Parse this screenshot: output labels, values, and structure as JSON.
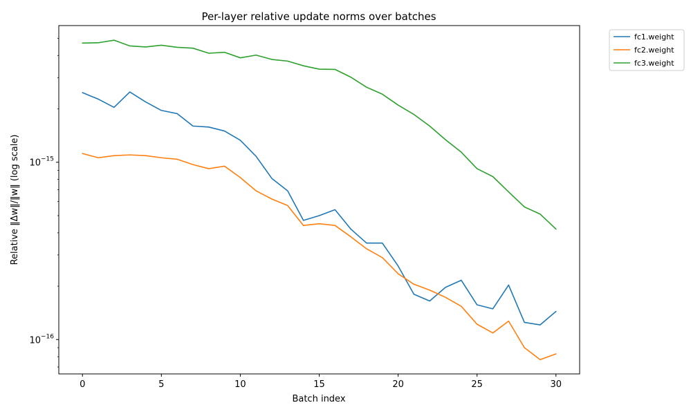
{
  "chart_data": {
    "type": "line",
    "title": "Per-layer relative update norms over batches",
    "xlabel": "Batch index",
    "ylabel": "Relative ‖Δw‖/‖w‖ (log scale)",
    "yscale": "log",
    "xlim": [
      -1.5,
      31.5
    ],
    "ylim": [
      6.4e-17,
      5.9e-15
    ],
    "x": [
      0,
      1,
      2,
      3,
      4,
      5,
      6,
      7,
      8,
      9,
      10,
      11,
      12,
      13,
      14,
      15,
      16,
      17,
      18,
      19,
      20,
      21,
      22,
      23,
      24,
      25,
      26,
      27,
      28,
      29,
      30
    ],
    "x_ticks": [
      0,
      5,
      10,
      15,
      20,
      25,
      30
    ],
    "y_ticks": [
      {
        "value": 1e-15,
        "base": "10",
        "exp": "−15"
      },
      {
        "value": 1e-16,
        "base": "10",
        "exp": "−16"
      }
    ],
    "grid": false,
    "legend_position": "upper-right-outside",
    "series": [
      {
        "name": "fc1.weight",
        "color": "#1f77b4",
        "values": [
          2.47e-15,
          2.27e-15,
          2.04e-15,
          2.49e-15,
          2.19e-15,
          1.96e-15,
          1.88e-15,
          1.6e-15,
          1.58e-15,
          1.5e-15,
          1.33e-15,
          1.08e-15,
          8.1e-16,
          6.9e-16,
          4.7e-16,
          5e-16,
          5.4e-16,
          4.2e-16,
          3.5e-16,
          3.5e-16,
          2.6e-16,
          1.8e-16,
          1.65e-16,
          1.97e-16,
          2.16e-16,
          1.57e-16,
          1.49e-16,
          2.03e-16,
          1.25e-16,
          1.21e-16,
          1.44e-16
        ]
      },
      {
        "name": "fc2.weight",
        "color": "#ff7f0e",
        "values": [
          1.12e-15,
          1.06e-15,
          1.09e-15,
          1.1e-15,
          1.09e-15,
          1.06e-15,
          1.04e-15,
          9.7e-16,
          9.2e-16,
          9.5e-16,
          8.2e-16,
          6.9e-16,
          6.2e-16,
          5.7e-16,
          4.4e-16,
          4.5e-16,
          4.4e-16,
          3.8e-16,
          3.25e-16,
          2.9e-16,
          2.35e-16,
          2.05e-16,
          1.9e-16,
          1.73e-16,
          1.54e-16,
          1.22e-16,
          1.09e-16,
          1.27e-16,
          9e-17,
          7.7e-17,
          8.3e-17
        ]
      },
      {
        "name": "fc3.weight",
        "color": "#2ca02c",
        "values": [
          4.7e-15,
          4.72e-15,
          4.88e-15,
          4.53e-15,
          4.47e-15,
          4.57e-15,
          4.45e-15,
          4.4e-15,
          4.12e-15,
          4.17e-15,
          3.88e-15,
          4.02e-15,
          3.8e-15,
          3.72e-15,
          3.5e-15,
          3.35e-15,
          3.34e-15,
          3.02e-15,
          2.65e-15,
          2.42e-15,
          2.1e-15,
          1.86e-15,
          1.6e-15,
          1.34e-15,
          1.14e-15,
          9.2e-16,
          8.3e-16,
          6.8e-16,
          5.6e-16,
          5.1e-16,
          4.2e-16
        ]
      }
    ]
  }
}
